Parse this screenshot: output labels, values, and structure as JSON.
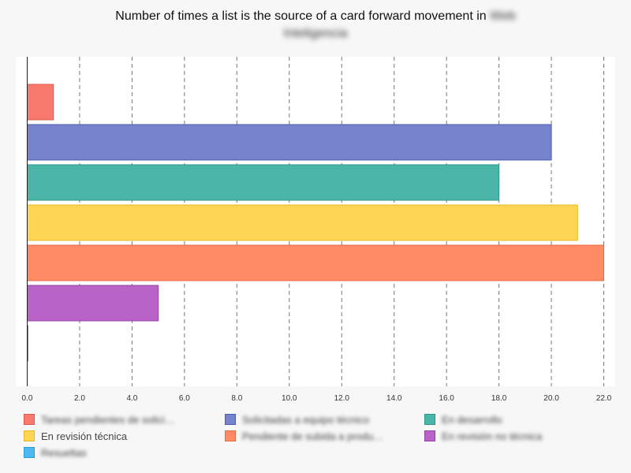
{
  "chart_data": {
    "type": "bar",
    "orientation": "horizontal",
    "title_prefix": "Number of times a list is the source of a card forward movement in",
    "title_obscured_line1": "Web",
    "title_obscured_line2": "Inteligencia",
    "xlim": [
      0,
      22
    ],
    "x_ticks": [
      "0.0",
      "2.0",
      "4.0",
      "6.0",
      "8.0",
      "10.0",
      "12.0",
      "14.0",
      "16.0",
      "18.0",
      "20.0",
      "22.0"
    ],
    "grid": true,
    "legend_position": "bottom",
    "series": [
      {
        "name": "Tareas pendientes de solici…",
        "value": 1,
        "color": "#f87a6e",
        "border": "#e0574b",
        "blurred": true
      },
      {
        "name": "Solicitadas a equipo técnico",
        "value": 20,
        "color": "#7682cc",
        "border": "#4f5bb0",
        "blurred": true
      },
      {
        "name": "En desarrollo",
        "value": 18,
        "color": "#4bb5aa",
        "border": "#2a978c",
        "blurred": true
      },
      {
        "name": "En revisión técnica",
        "value": 21,
        "color": "#fed453",
        "border": "#e8b82a",
        "blurred": false
      },
      {
        "name": "Pendiente de subida a produ…",
        "value": 22,
        "color": "#ff8a64",
        "border": "#e56a40",
        "blurred": true
      },
      {
        "name": "En revisión no técnica",
        "value": 5,
        "color": "#b963c8",
        "border": "#9342a4",
        "blurred": true
      },
      {
        "name": "Resueltas",
        "value": 0,
        "color": "#4cbaf0",
        "border": "#2a9cd6",
        "blurred": true
      }
    ]
  }
}
